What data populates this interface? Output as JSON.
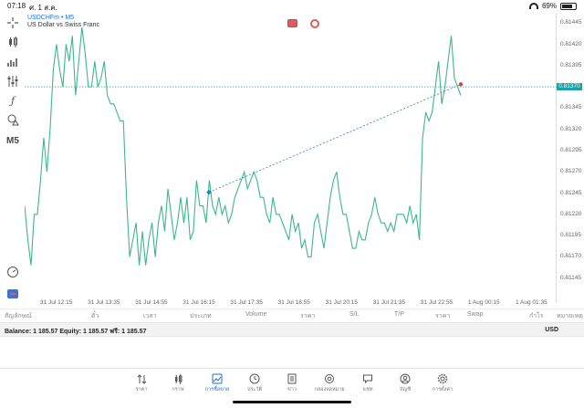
{
  "status_bar": {
    "time": "07:18",
    "date": "ศ. 1 ส.ค.",
    "battery": "69%"
  },
  "symbol": {
    "title": "USDCHFm • M5",
    "description": "US Dollar vs Swiss Franc"
  },
  "toolbar": {
    "timeframe": "M5"
  },
  "y_axis": {
    "labels": [
      "0.81445",
      "0.81420",
      "0.81395",
      "0.81370",
      "0.81345",
      "0.81320",
      "0.81295",
      "0.81270",
      "0.81245",
      "0.81220",
      "0.81195",
      "0.81170",
      "0.81145"
    ],
    "current_price": "0.81370",
    "current_price_color": "#1aa3a3"
  },
  "x_axis": {
    "labels": [
      "31 Jul 12:15",
      "31 Jul 13:35",
      "31 Jul 14:55",
      "31 Jul 16:15",
      "31 Jul 17:35",
      "31 Jul 18:55",
      "31 Jul 20:15",
      "31 Jul 21:35",
      "31 Jul 22:55",
      "1 Aug 00:15",
      "1 Aug 01:35"
    ]
  },
  "trade_columns": [
    "สัญลักษณ์",
    "ตั๋ว",
    "เวลา",
    "ประเภท",
    "Volume",
    "ราคา",
    "S/L",
    "T/P",
    "ราคา",
    "Swap",
    "กำไร",
    "หมายเหตุ"
  ],
  "account": {
    "summary": "Balance: 1 185.57 Equity: 1 185.57 ฟรี: 1 185.57",
    "currency": "USD"
  },
  "nav": [
    {
      "label": "ราคา",
      "icon": "arrows-updown-icon"
    },
    {
      "label": "กราฟ",
      "icon": "candles-icon"
    },
    {
      "label": "การซื้อขาย",
      "icon": "trade-chart-icon",
      "active": true
    },
    {
      "label": "ประวัติ",
      "icon": "history-icon"
    },
    {
      "label": "ข่าว",
      "icon": "news-icon"
    },
    {
      "label": "กล่องจดหมาย",
      "icon": "mail-at-icon"
    },
    {
      "label": "แชท",
      "icon": "chat-icon"
    },
    {
      "label": "บัญชี",
      "icon": "account-icon"
    },
    {
      "label": "การตั้งค่า",
      "icon": "gear-icon"
    }
  ],
  "chart_data": {
    "type": "line",
    "line_color": "#3cb88a",
    "ylim": [
      0.81135,
      0.81455
    ],
    "x_labels": [
      "31 Jul 12:15",
      "31 Jul 13:35",
      "31 Jul 14:55",
      "31 Jul 16:15",
      "31 Jul 17:35",
      "31 Jul 18:55",
      "31 Jul 20:15",
      "31 Jul 21:35",
      "31 Jul 22:55",
      "1 Aug 00:15",
      "1 Aug 01:35"
    ],
    "series": [
      {
        "values": [
          0.8123,
          0.8119,
          0.8116,
          0.8122,
          0.8122,
          0.8126,
          0.8131,
          0.8127,
          0.8132,
          0.8139,
          0.8142,
          0.8139,
          0.8137,
          0.8142,
          0.814,
          0.8143,
          0.8136,
          0.814,
          0.8144,
          0.8141,
          0.8137,
          0.8137,
          0.814,
          0.8137,
          0.8138,
          0.814,
          0.8136,
          0.8135,
          0.8135,
          0.8134,
          0.8133,
          0.8133,
          0.8124,
          0.8117,
          0.8119,
          0.8121,
          0.8116,
          0.812,
          0.8116,
          0.8119,
          0.8121,
          0.8117,
          0.8121,
          0.8123,
          0.812,
          0.8125,
          0.8122,
          0.8119,
          0.8121,
          0.8124,
          0.8121,
          0.8124,
          0.8119,
          0.812,
          0.8126,
          0.8123,
          0.8123,
          0.8121,
          0.8126,
          0.8123,
          0.8122,
          0.8124,
          0.8122,
          0.8123,
          0.8121,
          0.8122,
          0.8124,
          0.8125,
          0.8126,
          0.8127,
          0.8125,
          0.8126,
          0.8127,
          0.8126,
          0.8124,
          0.8124,
          0.8122,
          0.8121,
          0.8124,
          0.8122,
          0.8122,
          0.8121,
          0.812,
          0.8119,
          0.8122,
          0.812,
          0.8121,
          0.8118,
          0.8119,
          0.8117,
          0.8117,
          0.8121,
          0.8122,
          0.812,
          0.8118,
          0.8121,
          0.8124,
          0.8126,
          0.8127,
          0.8124,
          0.8122,
          0.8122,
          0.812,
          0.8118,
          0.8118,
          0.812,
          0.8119,
          0.8119,
          0.8121,
          0.8122,
          0.8124,
          0.8122,
          0.8121,
          0.8121,
          0.812,
          0.8121,
          0.812,
          0.8122,
          0.8122,
          0.8122,
          0.8121,
          0.8123,
          0.8121,
          0.8122,
          0.8119,
          0.8131,
          0.8134,
          0.8133,
          0.8134,
          0.8137,
          0.814,
          0.8135,
          0.8137,
          0.814,
          0.8143,
          0.8138,
          0.8137,
          0.8136
        ],
        "type": "line"
      },
      {
        "name": "",
        "type": "dashed-line",
        "color": "#2a7fc8",
        "start": 0.81246,
        "end": 0.81373
      }
    ],
    "markers": [
      {
        "color": "#2a7fc8",
        "value": 0.81246
      },
      {
        "color": "#d94545",
        "value": 0.81373
      }
    ],
    "price_line": 0.8137,
    "grid": false
  }
}
